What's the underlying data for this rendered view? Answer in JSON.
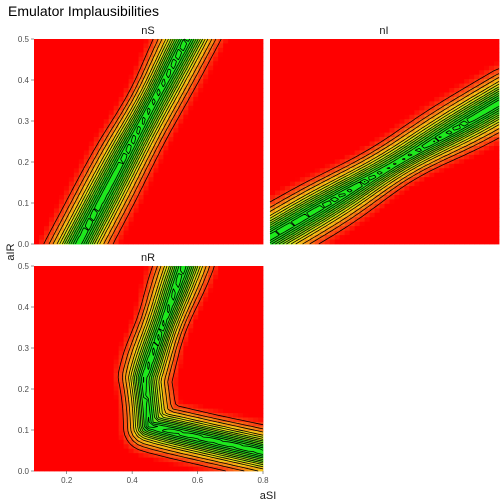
{
  "chart_data": {
    "type": "heatmap",
    "title": "Emulator Implausibilities",
    "xlabel": "aSI",
    "ylabel": "aIR",
    "xlim": [
      0.1,
      0.8
    ],
    "ylim": [
      0.0,
      0.5
    ],
    "xticks": [
      "0.2",
      "0.4",
      "0.6",
      "0.8"
    ],
    "yticks": [
      "0.0",
      "0.1",
      "0.2",
      "0.3",
      "0.4",
      "0.5"
    ],
    "grid": false,
    "legend": "none",
    "colors": {
      "low": "#1ee81e",
      "mid": "#e8e020",
      "high": "#ff0000",
      "band": "#e84010"
    },
    "panels": [
      {
        "name": "nS",
        "ridge": "diagonal",
        "ridge_from": [
          0.22,
          0.0
        ],
        "ridge_to": [
          0.57,
          0.5
        ]
      },
      {
        "name": "nI",
        "ridge": "diagonal-shallow",
        "ridge_from": [
          0.1,
          0.01
        ],
        "ridge_to": [
          0.8,
          0.34
        ]
      },
      {
        "name": "nR",
        "ridge": "curved",
        "ridge_from": [
          0.55,
          0.5
        ],
        "ridge_mid": [
          0.44,
          0.2
        ],
        "ridge_to": [
          0.8,
          0.04
        ]
      }
    ]
  }
}
